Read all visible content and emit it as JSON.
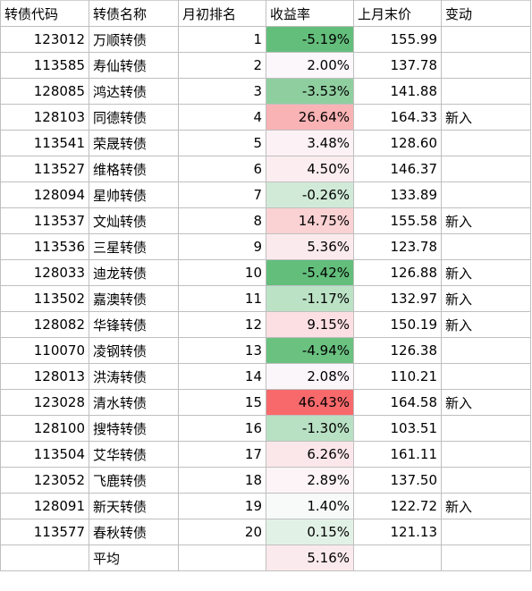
{
  "headers": [
    "转债代码",
    "转债名称",
    "月初排名",
    "收益率",
    "上月末价",
    "变动"
  ],
  "rows": [
    {
      "code": "123012",
      "name": "万顺转债",
      "rank": "1",
      "ret": "-5.19%",
      "price": "155.99",
      "change": "",
      "ret_color": "#63be7b"
    },
    {
      "code": "113585",
      "name": "寿仙转债",
      "rank": "2",
      "ret": "2.00%",
      "price": "137.78",
      "change": "",
      "ret_color": "#fbf7fa"
    },
    {
      "code": "128085",
      "name": "鸿达转债",
      "rank": "3",
      "ret": "-3.53%",
      "price": "141.88",
      "change": "",
      "ret_color": "#8fcf9f"
    },
    {
      "code": "128103",
      "name": "同德转债",
      "rank": "4",
      "ret": "26.64%",
      "price": "164.33",
      "change": "新入",
      "ret_color": "#f9b3b5"
    },
    {
      "code": "113541",
      "name": "荣晟转债",
      "rank": "5",
      "ret": "3.48%",
      "price": "128.60",
      "change": "",
      "ret_color": "#fcf1f4"
    },
    {
      "code": "113527",
      "name": "维格转债",
      "rank": "6",
      "ret": "4.50%",
      "price": "146.37",
      "change": "",
      "ret_color": "#fbedf0"
    },
    {
      "code": "128094",
      "name": "星帅转债",
      "rank": "7",
      "ret": "-0.26%",
      "price": "133.89",
      "change": "",
      "ret_color": "#d1ead8"
    },
    {
      "code": "113537",
      "name": "文灿转债",
      "rank": "8",
      "ret": "14.75%",
      "price": "155.58",
      "change": "新入",
      "ret_color": "#fad2d4"
    },
    {
      "code": "113536",
      "name": "三星转债",
      "rank": "9",
      "ret": "5.36%",
      "price": "123.78",
      "change": "",
      "ret_color": "#fbeaed"
    },
    {
      "code": "128033",
      "name": "迪龙转债",
      "rank": "10",
      "ret": "-5.42%",
      "price": "126.88",
      "change": "新入",
      "ret_color": "#63be7b"
    },
    {
      "code": "113502",
      "name": "嘉澳转债",
      "rank": "11",
      "ret": "-1.17%",
      "price": "132.97",
      "change": "新入",
      "ret_color": "#bce2c6"
    },
    {
      "code": "128082",
      "name": "华锋转债",
      "rank": "12",
      "ret": "9.15%",
      "price": "150.19",
      "change": "新入",
      "ret_color": "#fbdfe3"
    },
    {
      "code": "110070",
      "name": "凌钢转债",
      "rank": "13",
      "ret": "-4.94%",
      "price": "126.38",
      "change": "",
      "ret_color": "#6ac180"
    },
    {
      "code": "128013",
      "name": "洪涛转债",
      "rank": "14",
      "ret": "2.08%",
      "price": "110.21",
      "change": "",
      "ret_color": "#fbf6f9"
    },
    {
      "code": "123028",
      "name": "清水转债",
      "rank": "15",
      "ret": "46.43%",
      "price": "164.58",
      "change": "新入",
      "ret_color": "#f8696b"
    },
    {
      "code": "128100",
      "name": "搜特转债",
      "rank": "16",
      "ret": "-1.30%",
      "price": "103.51",
      "change": "",
      "ret_color": "#b8e0c3"
    },
    {
      "code": "113504",
      "name": "艾华转债",
      "rank": "17",
      "ret": "6.26%",
      "price": "161.11",
      "change": "",
      "ret_color": "#fbe7ea"
    },
    {
      "code": "123052",
      "name": "飞鹿转债",
      "rank": "18",
      "ret": "2.89%",
      "price": "137.50",
      "change": "",
      "ret_color": "#fcf4f6"
    },
    {
      "code": "128091",
      "name": "新天转债",
      "rank": "19",
      "ret": "1.40%",
      "price": "122.72",
      "change": "新入",
      "ret_color": "#f8fafa"
    },
    {
      "code": "113577",
      "name": "春秋转债",
      "rank": "20",
      "ret": "0.15%",
      "price": "121.13",
      "change": "",
      "ret_color": "#e2f1e6"
    }
  ],
  "footer": {
    "code": "",
    "name": "平均",
    "rank": "",
    "ret": "5.16%",
    "price": "",
    "change": "",
    "ret_color": "#fbeaed"
  }
}
